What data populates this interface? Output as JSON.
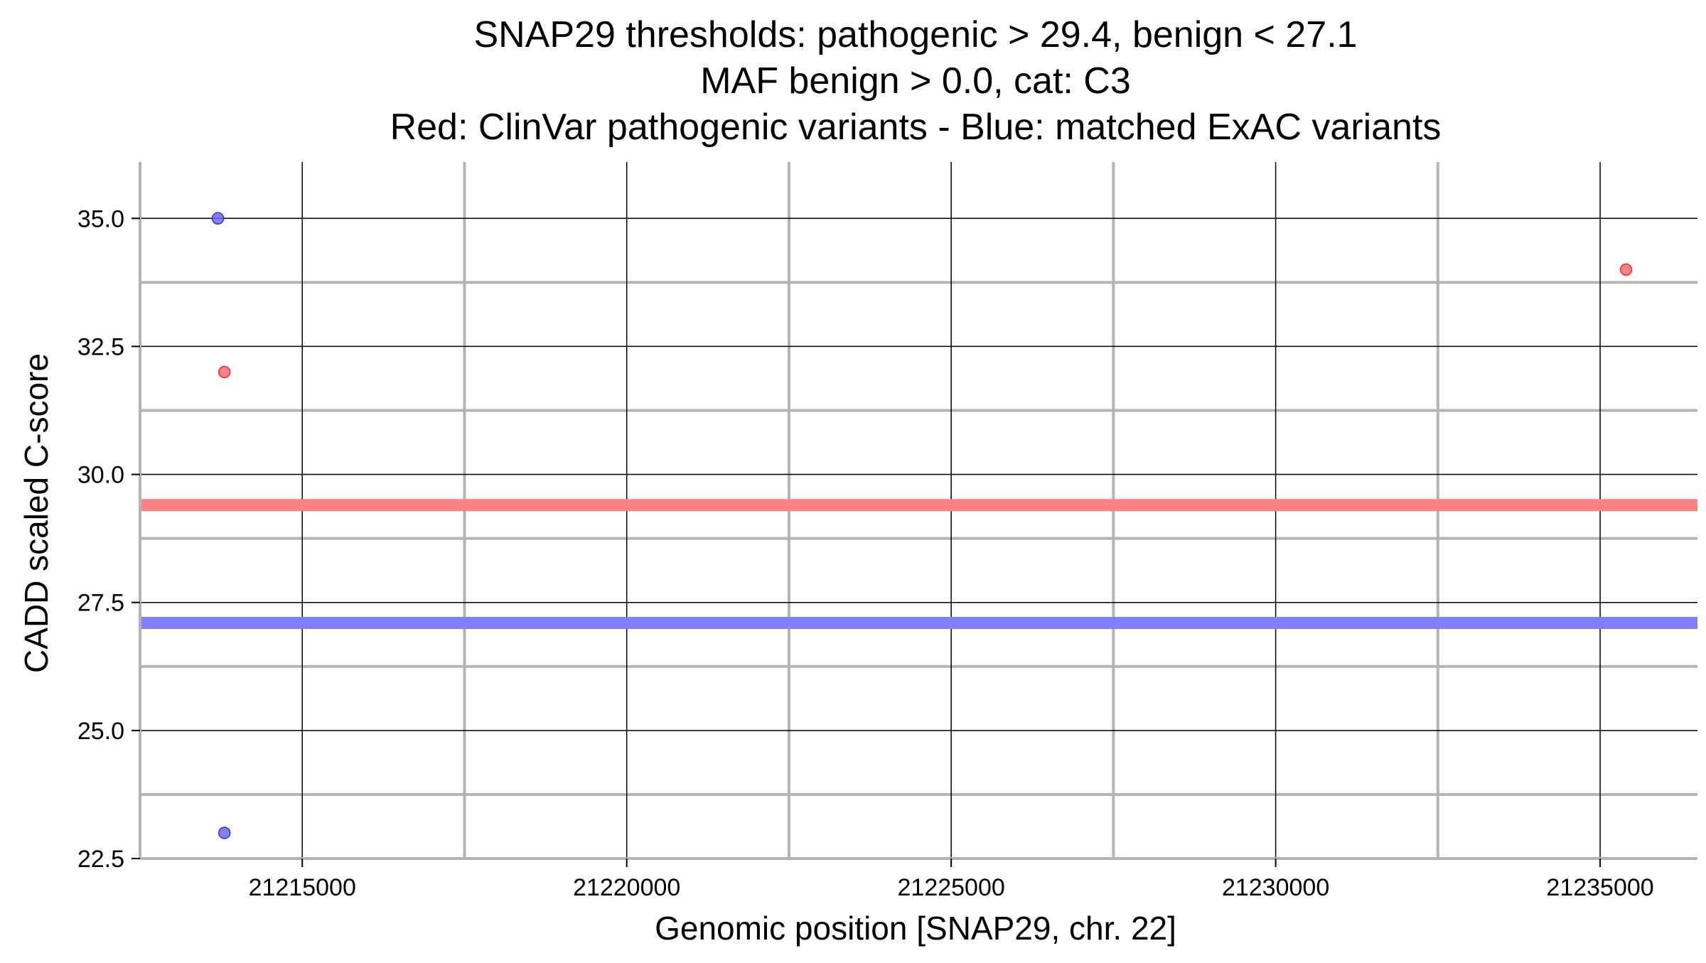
{
  "chart_data": {
    "type": "scatter",
    "title_lines": [
      "SNAP29 thresholds: pathogenic > 29.4, benign < 27.1",
      "MAF benign > 0.0, cat: C3",
      "Red: ClinVar pathogenic variants - Blue: matched ExAC variants"
    ],
    "xlabel": "Genomic position [SNAP29, chr. 22]",
    "ylabel": "CADD scaled C-score",
    "xlim": [
      21212500,
      21236500
    ],
    "ylim": [
      22.5,
      36.1
    ],
    "x_major_ticks": [
      21215000,
      21220000,
      21225000,
      21230000,
      21235000
    ],
    "x_tick_labels": [
      "21215000",
      "21220000",
      "21225000",
      "21230000",
      "21235000"
    ],
    "x_minor_gridlines": [
      21212500,
      21217500,
      21222500,
      21227500,
      21232500
    ],
    "y_major_ticks": [
      22.5,
      25.0,
      27.5,
      30.0,
      32.5,
      35.0
    ],
    "y_tick_labels": [
      "22.5",
      "25.0",
      "27.5",
      "30.0",
      "32.5",
      "35.0"
    ],
    "y_minor_gridlines": [
      23.75,
      26.25,
      28.75,
      31.25,
      33.75
    ],
    "grid": true,
    "thresholds": [
      {
        "name": "pathogenic",
        "value": 29.4,
        "color": "#ff8080"
      },
      {
        "name": "benign",
        "value": 27.1,
        "color": "#8080ff"
      }
    ],
    "series": [
      {
        "name": "ClinVar pathogenic variants",
        "color": "#ff6b6b",
        "stroke": "#e03030",
        "points": [
          {
            "x": 21213800,
            "y": 32.0
          },
          {
            "x": 21235400,
            "y": 34.0
          }
        ]
      },
      {
        "name": "matched ExAC variants",
        "color": "#6b6bff",
        "stroke": "#3030e0",
        "points": [
          {
            "x": 21213700,
            "y": 35.0
          },
          {
            "x": 21213800,
            "y": 23.0
          }
        ]
      }
    ]
  }
}
